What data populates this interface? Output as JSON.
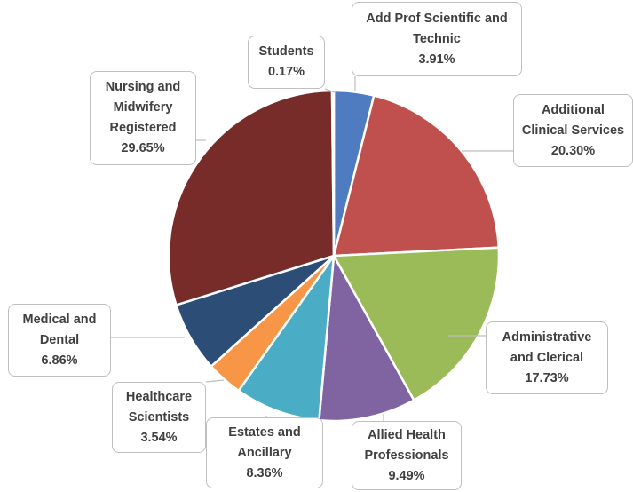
{
  "chart_data": {
    "type": "pie",
    "categories": [
      "Add Prof Scientific and Technic",
      "Additional Clinical Services",
      "Administrative and Clerical",
      "Allied Health Professionals",
      "Estates and Ancillary",
      "Healthcare Scientists",
      "Medical and Dental",
      "Nursing and Midwifery Registered",
      "Students"
    ],
    "values": [
      3.91,
      20.3,
      17.73,
      9.49,
      8.36,
      3.54,
      6.86,
      29.65,
      0.17
    ],
    "value_labels": [
      "3.91%",
      "20.30%",
      "17.73%",
      "9.49%",
      "8.36%",
      "3.54%",
      "6.86%",
      "29.65%",
      "0.17%"
    ],
    "colors": [
      "#4f7bc0",
      "#c0504d",
      "#9bbb59",
      "#8064a2",
      "#4bacc6",
      "#f79646",
      "#2c4d75",
      "#772c2a",
      "#6d93cf"
    ]
  }
}
